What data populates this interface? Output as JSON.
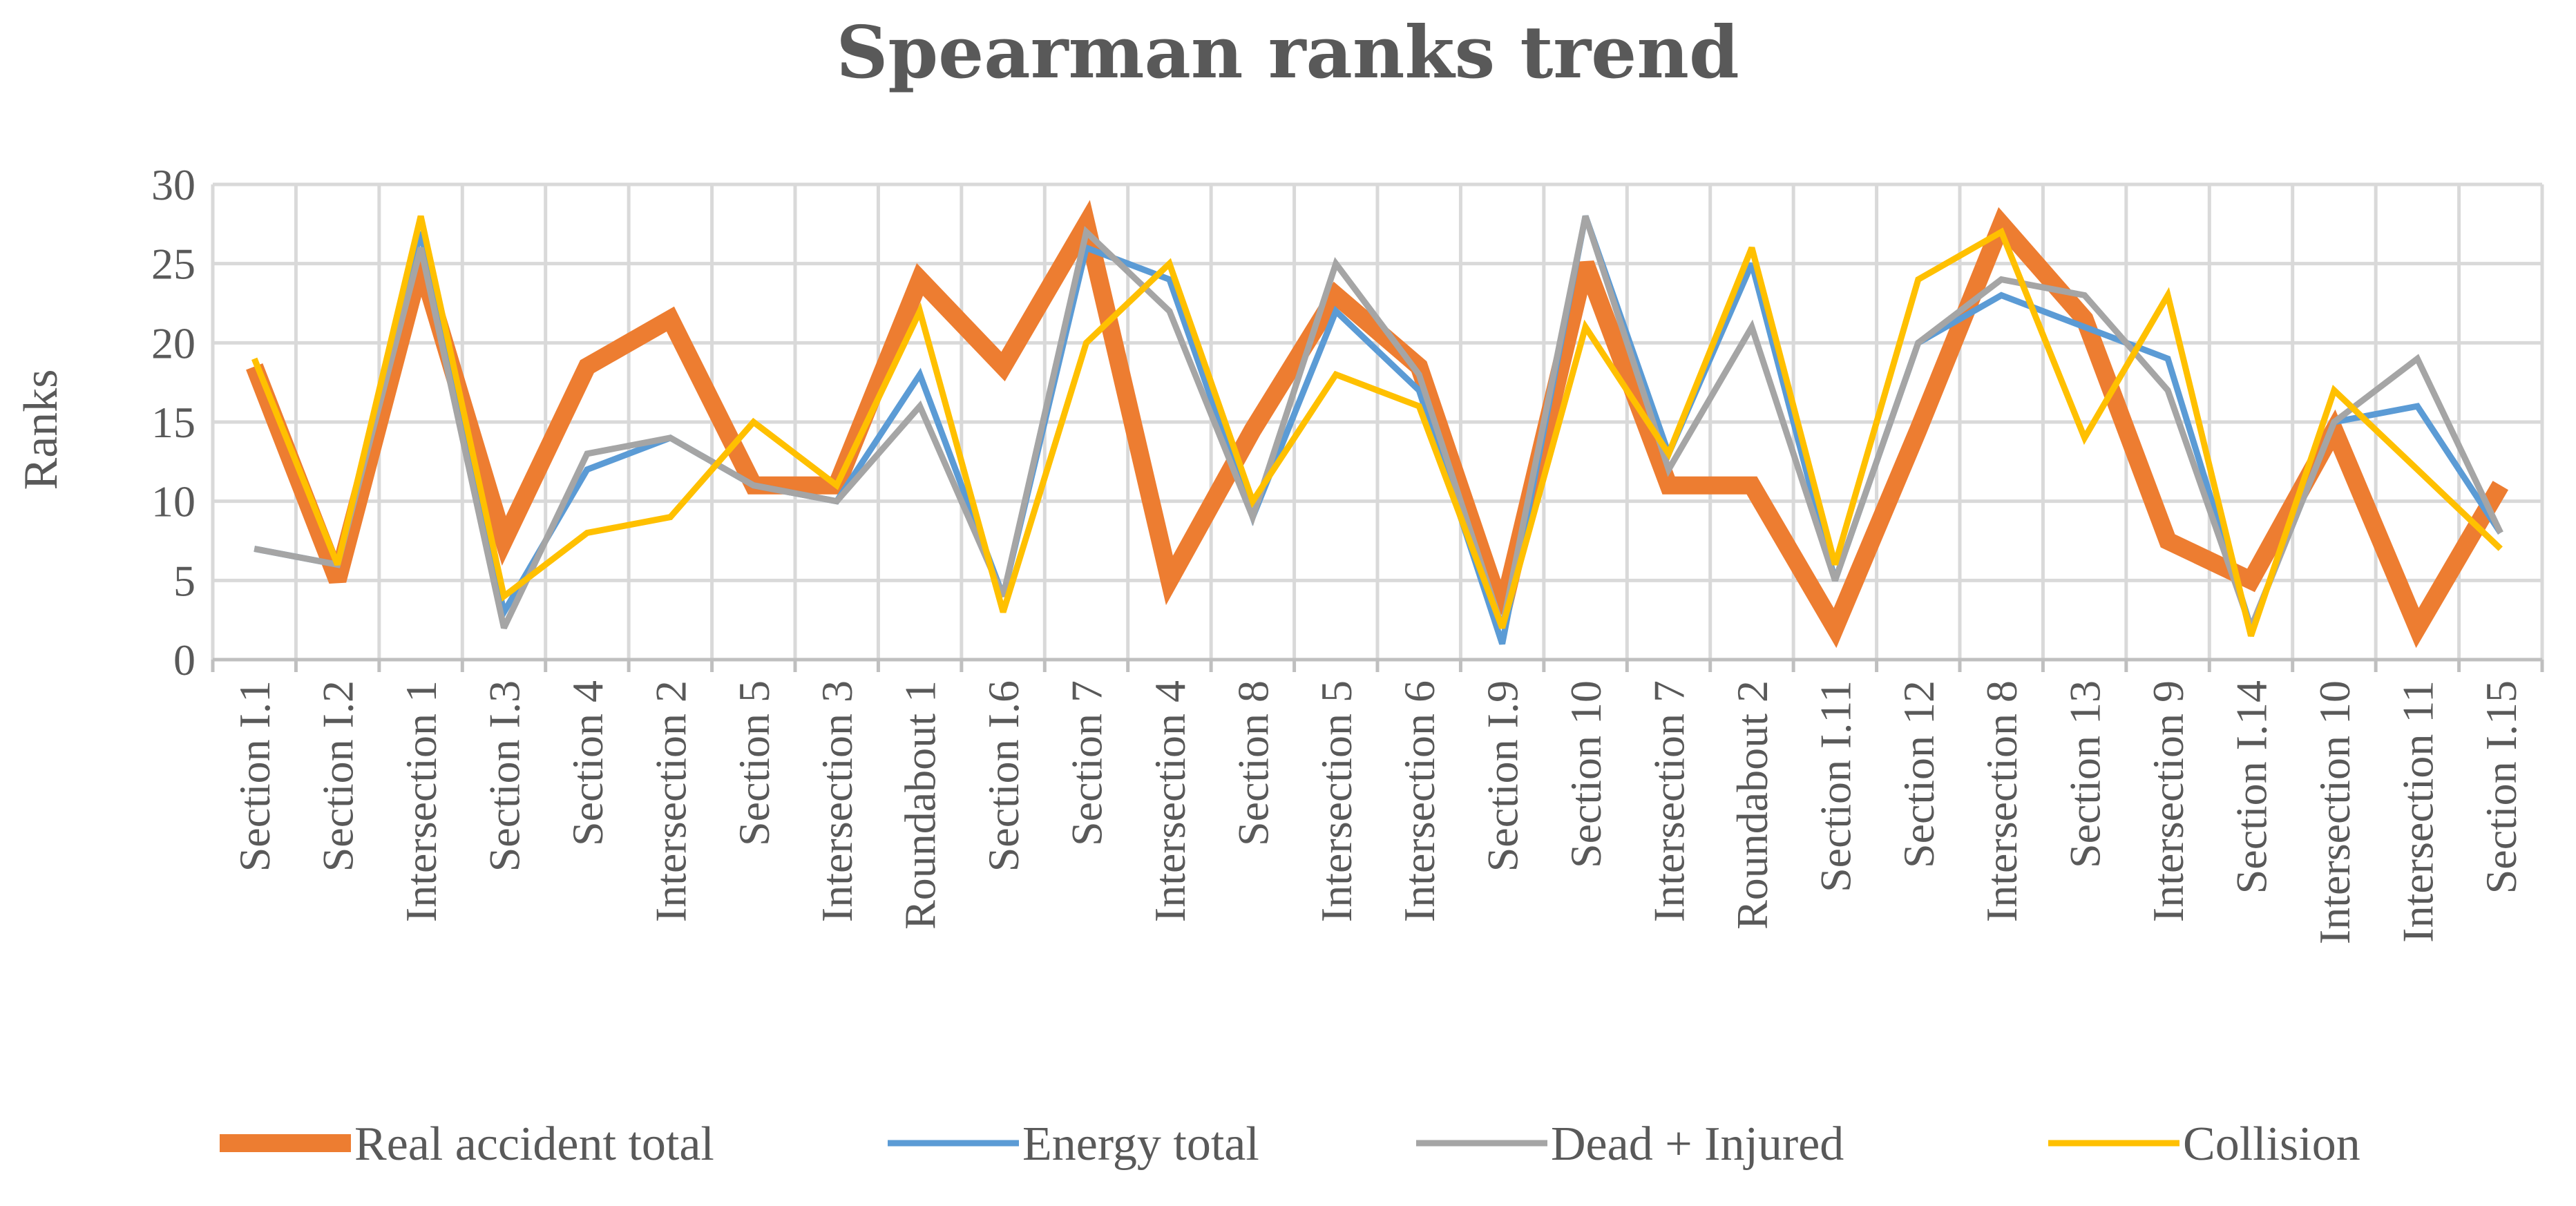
{
  "chart_data": {
    "type": "line",
    "title": "Spearman ranks trend",
    "xlabel": "",
    "ylabel": "Ranks",
    "ylim": [
      0,
      30
    ],
    "yticks": [
      0,
      5,
      10,
      15,
      20,
      25,
      30
    ],
    "grid": true,
    "legend_position": "bottom",
    "categories": [
      "Section I.1",
      "Section I.2",
      "Intersection 1",
      "Section I.3",
      "Section 4",
      "Intersection 2",
      "Section 5",
      "Intersection 3",
      "Roundabout 1",
      "Section I.6",
      "Section 7",
      "Intersection 4",
      "Section 8",
      "Intersection 5",
      "Intersection 6",
      "Section I.9",
      "Section 10",
      "Intersection 7",
      "Roundabout 2",
      "Section I.11",
      "Section 12",
      "Intersection 8",
      "Section 13",
      "Intersection 9",
      "Section I.14",
      "Intersection 10",
      "Intersection 11",
      "Section I.15"
    ],
    "series": [
      {
        "name": "Real accident total",
        "color": "#ED7D31",
        "width": 26,
        "values": [
          18.5,
          5,
          25,
          7.5,
          18.5,
          21.5,
          11,
          11,
          24,
          18.5,
          27.5,
          5,
          14.5,
          23,
          18.5,
          3,
          25,
          11,
          11,
          2,
          14.5,
          27.5,
          21.5,
          7.5,
          5,
          14.5,
          2,
          11
        ]
      },
      {
        "name": "Energy total",
        "color": "#5B9BD5",
        "width": 9,
        "values": [
          7,
          6,
          27,
          3,
          12,
          14,
          11,
          10,
          18,
          4,
          26,
          24,
          9,
          22,
          17,
          1,
          28,
          13,
          25,
          5,
          20,
          23,
          21,
          19,
          2,
          15,
          16,
          8
        ]
      },
      {
        "name": "Dead + Injured",
        "color": "#A5A5A5",
        "width": 9,
        "values": [
          7,
          6,
          26,
          2,
          13,
          14,
          11,
          10,
          16,
          4,
          27,
          22,
          9,
          25,
          18,
          2,
          28,
          12,
          21,
          5,
          20,
          24,
          23,
          17,
          2,
          15,
          19,
          8
        ]
      },
      {
        "name": "Collision",
        "color": "#FFC000",
        "width": 9,
        "values": [
          19,
          6,
          28,
          4,
          8,
          9,
          15,
          11,
          22,
          3,
          20,
          25,
          10,
          18,
          16,
          2,
          21,
          13,
          26,
          6,
          24,
          27,
          14,
          23,
          1.5,
          17,
          12,
          7
        ]
      }
    ]
  }
}
